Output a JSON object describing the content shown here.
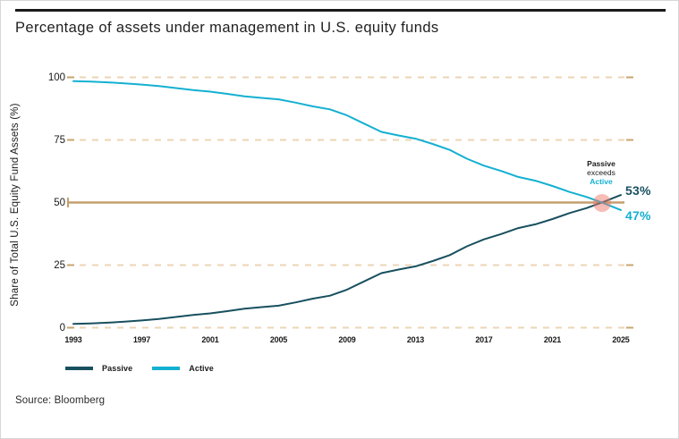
{
  "title": "Percentage of assets under management in U.S. equity funds",
  "source": "Source: Bloomberg",
  "legend": [
    {
      "label": "Passive",
      "color": "#18505f"
    },
    {
      "label": "Active",
      "color": "#14b0d2"
    }
  ],
  "end_labels": {
    "passive": "53%",
    "active": "47%"
  },
  "annotation": {
    "line1": "Passive",
    "line2": "exceeds",
    "line3": "Active"
  },
  "colors": {
    "passive_line": "#18505f",
    "active_line": "#14b0d2",
    "reference_line": "#c3a06e",
    "grid_dash": "#ecd5b4",
    "grid_dash_end": "#c9a46f",
    "crossover_marker": "#ee7a6c",
    "text_dark": "#1a1a1a"
  },
  "chart_data": {
    "type": "line",
    "title": "Percentage of assets under management in U.S. equity funds",
    "xlabel": "",
    "ylabel": "Share of Total U.S. Equity Fund Assets (%)",
    "ylim": [
      0,
      100
    ],
    "xlim": [
      1993,
      2025
    ],
    "y_ticks": [
      0,
      25,
      50,
      75,
      100
    ],
    "x_ticks": [
      1993,
      1997,
      2001,
      2005,
      2009,
      2013,
      2017,
      2021,
      2025
    ],
    "grid": "horizontal-only",
    "gridlines": {
      "values": [
        0,
        25,
        75,
        100
      ],
      "style": "dashed",
      "color": "#ecd5b4"
    },
    "reference_line": {
      "value": 50,
      "style": "solid",
      "color": "#c3a06e"
    },
    "legend_position": "bottom-left",
    "x": [
      1993,
      1994,
      1995,
      1996,
      1997,
      1998,
      1999,
      2000,
      2001,
      2002,
      2003,
      2004,
      2005,
      2006,
      2007,
      2008,
      2009,
      2010,
      2011,
      2012,
      2013,
      2014,
      2015,
      2016,
      2017,
      2018,
      2019,
      2020,
      2021,
      2022,
      2023,
      2024,
      2025
    ],
    "series": [
      {
        "name": "Passive",
        "color": "#18505f",
        "values": [
          1.5,
          1.7,
          2.0,
          2.4,
          2.9,
          3.5,
          4.3,
          5.1,
          5.7,
          6.6,
          7.6,
          8.2,
          8.8,
          10.1,
          11.6,
          12.8,
          15.2,
          18.5,
          21.8,
          23.2,
          24.5,
          26.6,
          29.0,
          32.5,
          35.3,
          37.4,
          39.8,
          41.3,
          43.4,
          45.8,
          47.8,
          50.3,
          53.0
        ]
      },
      {
        "name": "Active",
        "color": "#14b0d2",
        "values": [
          98.5,
          98.3,
          98.0,
          97.6,
          97.1,
          96.5,
          95.7,
          94.9,
          94.3,
          93.4,
          92.4,
          91.8,
          91.2,
          89.9,
          88.4,
          87.2,
          84.8,
          81.5,
          78.2,
          76.8,
          75.5,
          73.4,
          71.0,
          67.5,
          64.7,
          62.6,
          60.2,
          58.7,
          56.6,
          54.2,
          52.2,
          49.7,
          47.0
        ]
      }
    ],
    "crossover": {
      "year": 2023.9,
      "value": 49.8,
      "marker_color": "#ee7a6c",
      "marker_opacity": 0.5
    },
    "end_values": {
      "Passive": 53,
      "Active": 47
    }
  }
}
